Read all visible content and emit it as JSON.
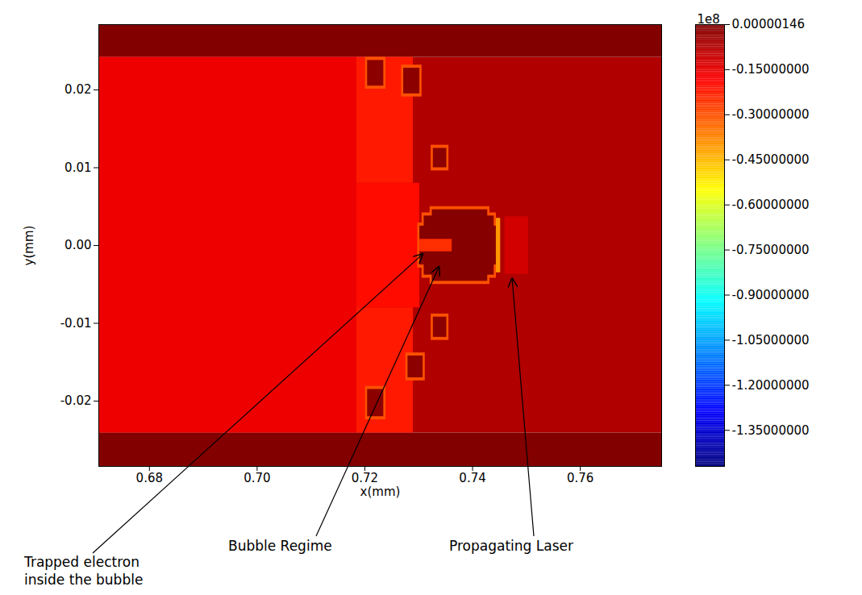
{
  "chart_data": {
    "type": "heatmap",
    "xlabel": "x(mm)",
    "ylabel": "y(mm)",
    "xlim": [
      0.6706,
      0.7751
    ],
    "xticks": [
      0.68,
      {
        "value": 0.7,
        "label": "0.70"
      },
      0.72,
      0.74,
      0.76
    ],
    "ylim": [
      -0.0284,
      0.0284
    ],
    "yticks": [
      -0.02,
      -0.01,
      {
        "value": 0,
        "label": "0.00"
      },
      0.01,
      0.02
    ],
    "regions": [
      {
        "x1": 0.6706,
        "x2": 0.7751,
        "y1": -0.0241,
        "y2": 0.0242,
        "value": -0.07
      },
      {
        "x1": 0.6706,
        "x2": 0.7751,
        "y1": 0.0242,
        "y2": 0.0284,
        "value": -0.005
      },
      {
        "x1": 0.6706,
        "x2": 0.7751,
        "y1": -0.0284,
        "y2": -0.0241,
        "value": -0.005
      },
      {
        "x1": 0.6706,
        "x2": 0.7185,
        "y1": -0.0241,
        "y2": 0.0242,
        "value": -0.16
      },
      {
        "x1": 0.7185,
        "x2": 0.729,
        "y1": 0.008,
        "y2": 0.0242,
        "value": -0.22
      },
      {
        "x1": 0.7185,
        "x2": 0.729,
        "y1": -0.0241,
        "y2": -0.008,
        "value": -0.22
      },
      {
        "x1": 0.7185,
        "x2": 0.7302,
        "y1": -0.008,
        "y2": 0.008,
        "value": -0.2
      },
      {
        "x1": 0.7201,
        "x2": 0.7239,
        "y1": 0.0201,
        "y2": 0.0242,
        "value": -0.3
      },
      {
        "x1": 0.7205,
        "x2": 0.7235,
        "y1": 0.0205,
        "y2": 0.0238,
        "value": -0.02
      },
      {
        "x1": 0.7268,
        "x2": 0.7306,
        "y1": 0.0191,
        "y2": 0.0232,
        "value": -0.3
      },
      {
        "x1": 0.7272,
        "x2": 0.7302,
        "y1": 0.0195,
        "y2": 0.0228,
        "value": -0.02
      },
      {
        "x1": 0.7323,
        "x2": 0.7356,
        "y1": 0.0096,
        "y2": 0.0129,
        "value": -0.3
      },
      {
        "x1": 0.7327,
        "x2": 0.7352,
        "y1": 0.01,
        "y2": 0.0125,
        "value": -0.02
      },
      {
        "x1": 0.7323,
        "x2": 0.7356,
        "y1": -0.0122,
        "y2": -0.0088,
        "value": -0.3
      },
      {
        "x1": 0.7327,
        "x2": 0.7352,
        "y1": -0.0118,
        "y2": -0.0092,
        "value": -0.02
      },
      {
        "x1": 0.7276,
        "x2": 0.7312,
        "y1": -0.0174,
        "y2": -0.0138,
        "value": -0.3
      },
      {
        "x1": 0.728,
        "x2": 0.7308,
        "y1": -0.017,
        "y2": -0.0142,
        "value": -0.02
      },
      {
        "x1": 0.7201,
        "x2": 0.7239,
        "y1": -0.0224,
        "y2": -0.0181,
        "value": -0.3
      },
      {
        "x1": 0.7205,
        "x2": 0.7235,
        "y1": -0.022,
        "y2": -0.0185,
        "value": -0.02
      },
      {
        "x1": 0.7306,
        "x2": 0.7444,
        "y1": -0.0042,
        "y2": 0.0042,
        "value": -0.3
      },
      {
        "x1": 0.7321,
        "x2": 0.7432,
        "y1": -0.005,
        "y2": 0.005,
        "value": -0.3
      },
      {
        "x1": 0.7298,
        "x2": 0.7448,
        "y1": -0.0029,
        "y2": 0.0029,
        "value": -0.3
      },
      {
        "x1": 0.731,
        "x2": 0.744,
        "y1": -0.0038,
        "y2": 0.0038,
        "value": -0.01
      },
      {
        "x1": 0.7325,
        "x2": 0.7428,
        "y1": -0.0046,
        "y2": 0.0046,
        "value": -0.01
      },
      {
        "x1": 0.7302,
        "x2": 0.7444,
        "y1": -0.0025,
        "y2": 0.0025,
        "value": -0.01
      },
      {
        "x1": 0.7444,
        "x2": 0.7452,
        "y1": -0.0035,
        "y2": 0.0035,
        "value": -0.4
      },
      {
        "x1": 0.7302,
        "x2": 0.7362,
        "y1": -0.0008,
        "y2": 0.0008,
        "value": -0.25
      },
      {
        "x1": 0.746,
        "x2": 0.7504,
        "y1": -0.0037,
        "y2": 0.0037,
        "value": -0.12
      }
    ],
    "colorbar": {
      "title": "1e8",
      "range": [
        -1.47,
        1.46e-06
      ],
      "colors": [
        "#00007f",
        "#0000ff",
        "#007fff",
        "#00ffff",
        "#7fff7f",
        "#ffff00",
        "#ff7f00",
        "#ff0000",
        "#7f0000"
      ],
      "ticks": [
        {
          "value": 1.46e-06,
          "label": "0.00000146"
        },
        {
          "value": -0.15,
          "label": "-0.15000000"
        },
        {
          "value": -0.3,
          "label": "-0.30000000"
        },
        {
          "value": -0.45,
          "label": "-0.45000000"
        },
        {
          "value": -0.6,
          "label": "-0.60000000"
        },
        {
          "value": -0.75,
          "label": "-0.75000000"
        },
        {
          "value": -0.9,
          "label": "-0.90000000"
        },
        {
          "value": -1.05,
          "label": "-1.05000000"
        },
        {
          "value": -1.2,
          "label": "-1.20000000"
        },
        {
          "value": -1.35,
          "label": "-1.35000000"
        }
      ]
    },
    "annotations": [
      {
        "text": [
          "Trapped electron",
          "inside the bubble"
        ],
        "x": 0.7309,
        "y": -0.0011
      },
      {
        "text": [
          "Bubble Regime"
        ],
        "x": 0.7339,
        "y": -0.0027
      },
      {
        "text": [
          "Propagating Laser"
        ],
        "x": 0.7474,
        "y": -0.0042
      }
    ]
  }
}
